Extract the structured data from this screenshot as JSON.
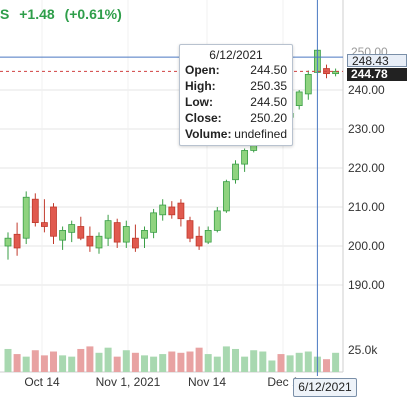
{
  "header": {
    "change": "+1.48",
    "change_pct": "(+0.61%)",
    "prefix": "S"
  },
  "tooltip": {
    "date": "6/12/2021",
    "rows": [
      {
        "k": "Open:",
        "v": "244.50"
      },
      {
        "k": "High:",
        "v": "250.35"
      },
      {
        "k": "Low:",
        "v": "244.50"
      },
      {
        "k": "Close:",
        "v": "250.20"
      },
      {
        "k": "Volume:",
        "v": "undefined"
      }
    ]
  },
  "price_markers": {
    "crosshair": "248.43",
    "last": "244.78",
    "partial_top": "250.00"
  },
  "x_badge": "6/12/2021",
  "colors": {
    "up": "#3a9e46",
    "up_fill": "#8fd37f",
    "down": "#c0392b",
    "down_fill": "#e05a4f",
    "crosshair": "#4a78c2",
    "last_line": "#d04040",
    "grid": "#e6e6e6",
    "vol_up": "#a8d8b0",
    "vol_down": "#e8a2a2"
  },
  "chart_data": {
    "type": "candlestick",
    "y_ticks": [
      "190.00",
      "200.00",
      "210.00",
      "220.00",
      "230.00",
      "240.00"
    ],
    "ylim": [
      185,
      253
    ],
    "x_ticks": [
      "Oct 14",
      "Nov 1, 2021",
      "Nov 14",
      "Dec 1"
    ],
    "volume_label": "25.0k",
    "candles": [
      {
        "o": 200.0,
        "h": 203.5,
        "l": 196.5,
        "c": 202.0
      },
      {
        "o": 203.0,
        "h": 206.0,
        "l": 197.5,
        "c": 199.5
      },
      {
        "o": 202.0,
        "h": 214.0,
        "l": 200.5,
        "c": 212.5
      },
      {
        "o": 212.0,
        "h": 213.5,
        "l": 205.0,
        "c": 206.0
      },
      {
        "o": 206.0,
        "h": 212.0,
        "l": 203.5,
        "c": 205.0
      },
      {
        "o": 210.0,
        "h": 211.0,
        "l": 200.5,
        "c": 202.5
      },
      {
        "o": 201.5,
        "h": 205.0,
        "l": 199.0,
        "c": 204.0
      },
      {
        "o": 203.5,
        "h": 206.5,
        "l": 201.0,
        "c": 205.5
      },
      {
        "o": 205.0,
        "h": 207.5,
        "l": 201.5,
        "c": 202.0
      },
      {
        "o": 202.5,
        "h": 205.0,
        "l": 198.5,
        "c": 200.0
      },
      {
        "o": 199.5,
        "h": 203.5,
        "l": 198.0,
        "c": 202.5
      },
      {
        "o": 202.0,
        "h": 208.0,
        "l": 200.0,
        "c": 206.5
      },
      {
        "o": 206.0,
        "h": 207.0,
        "l": 199.5,
        "c": 201.0
      },
      {
        "o": 201.0,
        "h": 206.5,
        "l": 199.5,
        "c": 205.0
      },
      {
        "o": 202.0,
        "h": 205.5,
        "l": 198.5,
        "c": 199.5
      },
      {
        "o": 202.0,
        "h": 205.0,
        "l": 199.5,
        "c": 204.0
      },
      {
        "o": 203.5,
        "h": 209.5,
        "l": 202.0,
        "c": 208.5
      },
      {
        "o": 208.0,
        "h": 212.0,
        "l": 206.5,
        "c": 210.5
      },
      {
        "o": 210.0,
        "h": 211.5,
        "l": 207.0,
        "c": 208.0
      },
      {
        "o": 211.0,
        "h": 212.0,
        "l": 205.0,
        "c": 207.0
      },
      {
        "o": 206.5,
        "h": 207.5,
        "l": 201.0,
        "c": 202.0
      },
      {
        "o": 202.5,
        "h": 205.0,
        "l": 199.0,
        "c": 200.0
      },
      {
        "o": 201.0,
        "h": 205.0,
        "l": 200.5,
        "c": 204.0
      },
      {
        "o": 204.0,
        "h": 210.0,
        "l": 203.5,
        "c": 209.0
      },
      {
        "o": 209.0,
        "h": 217.0,
        "l": 208.5,
        "c": 216.5
      },
      {
        "o": 217.0,
        "h": 222.0,
        "l": 216.0,
        "c": 221.0
      },
      {
        "o": 221.0,
        "h": 225.0,
        "l": 219.0,
        "c": 224.5
      },
      {
        "o": 224.5,
        "h": 229.0,
        "l": 224.0,
        "c": 228.0
      },
      {
        "o": 228.0,
        "h": 232.0,
        "l": 226.5,
        "c": 231.0
      },
      {
        "o": 231.0,
        "h": 235.5,
        "l": 230.0,
        "c": 234.5
      },
      {
        "o": 234.0,
        "h": 236.0,
        "l": 232.0,
        "c": 233.0
      },
      {
        "o": 233.0,
        "h": 234.5,
        "l": 232.0,
        "c": 234.0
      },
      {
        "o": 236.0,
        "h": 240.0,
        "l": 235.0,
        "c": 239.5
      },
      {
        "o": 239.0,
        "h": 245.0,
        "l": 237.5,
        "c": 244.0
      },
      {
        "o": 244.5,
        "h": 250.35,
        "l": 244.5,
        "c": 250.2
      },
      {
        "o": 245.5,
        "h": 246.5,
        "l": 243.0,
        "c": 244.2
      },
      {
        "o": 244.2,
        "h": 245.5,
        "l": 243.5,
        "c": 244.78
      }
    ],
    "volume": [
      18,
      14,
      12,
      17,
      13,
      16,
      13,
      12,
      18,
      20,
      15,
      19,
      12,
      17,
      15,
      13,
      12,
      14,
      16,
      15,
      16,
      19,
      14,
      12,
      20,
      18,
      12,
      17,
      16,
      9,
      14,
      13,
      15,
      16,
      12,
      10,
      15
    ]
  }
}
